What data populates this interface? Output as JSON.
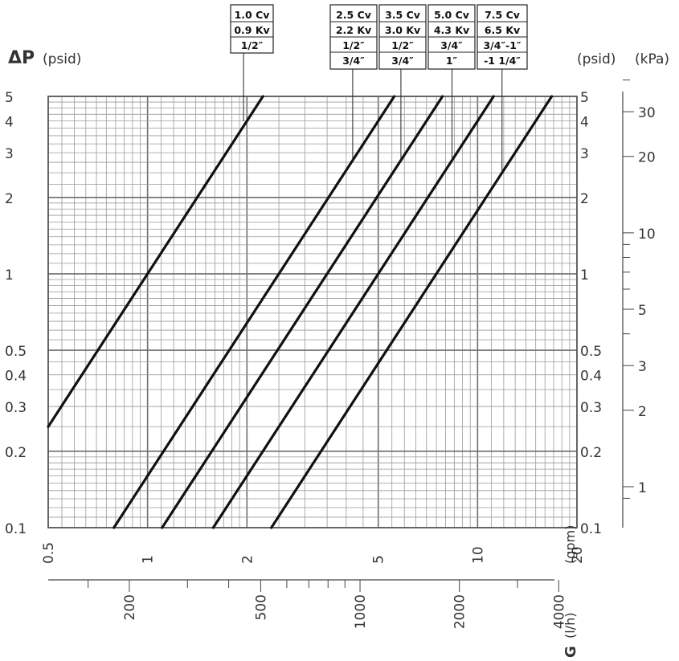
{
  "chart_data": {
    "type": "line",
    "scale": "log-log",
    "grid": true,
    "left_axis": {
      "title_symbol": "ΔP",
      "title_unit": "(psid)",
      "range": [
        0.1,
        5
      ],
      "ticks": [
        {
          "value": 5,
          "label": "5"
        },
        {
          "value": 4,
          "label": "4"
        },
        {
          "value": 3,
          "label": "3"
        },
        {
          "value": 2,
          "label": "2"
        },
        {
          "value": 1,
          "label": "1"
        },
        {
          "value": 0.5,
          "label": "0.5"
        },
        {
          "value": 0.4,
          "label": "0.4"
        },
        {
          "value": 0.3,
          "label": "0.3"
        },
        {
          "value": 0.2,
          "label": "0.2"
        },
        {
          "value": 0.1,
          "label": "0.1"
        }
      ]
    },
    "right_axis_psid": {
      "title": "(psid)",
      "ticks": [
        {
          "value": 5,
          "label": "5"
        },
        {
          "value": 4,
          "label": "4"
        },
        {
          "value": 3,
          "label": "3"
        },
        {
          "value": 2,
          "label": "2"
        },
        {
          "value": 1,
          "label": "1"
        },
        {
          "value": 0.5,
          "label": "0.5"
        },
        {
          "value": 0.4,
          "label": "0.4"
        },
        {
          "value": 0.3,
          "label": "0.3"
        },
        {
          "value": 0.2,
          "label": "0.2"
        },
        {
          "value": 0.1,
          "label": "0.1"
        }
      ]
    },
    "right_axis_kpa": {
      "title": "(kPa)",
      "ticks": [
        {
          "value": 30,
          "label": "30"
        },
        {
          "value": 20,
          "label": "20"
        },
        {
          "value": 10,
          "label": "10"
        },
        {
          "value": 5,
          "label": "5"
        },
        {
          "value": 3,
          "label": "3"
        },
        {
          "value": 2,
          "label": "2"
        },
        {
          "value": 1,
          "label": "1"
        }
      ],
      "minor_ticks": [
        40,
        9,
        8,
        7,
        6,
        4,
        0.9
      ]
    },
    "x_axis_gpm": {
      "title": "(gpm)",
      "range": [
        0.5,
        20
      ],
      "ticks": [
        {
          "value": 0.5,
          "label": "0.5"
        },
        {
          "value": 1,
          "label": "1"
        },
        {
          "value": 2,
          "label": "2"
        },
        {
          "value": 5,
          "label": "5"
        },
        {
          "value": 10,
          "label": "10"
        },
        {
          "value": 20,
          "label": "20"
        }
      ]
    },
    "x_axis_lh": {
      "title_symbol": "G",
      "title_unit": "(l/h)",
      "ticks": [
        {
          "value": 200,
          "label": "200"
        },
        {
          "value": 500,
          "label": "500"
        },
        {
          "value": 1000,
          "label": "1000"
        },
        {
          "value": 2000,
          "label": "2000"
        },
        {
          "value": 4000,
          "label": "4000"
        }
      ],
      "minor_ticks": [
        150,
        300,
        400,
        600,
        700,
        800,
        900,
        3000
      ]
    },
    "series": [
      {
        "cv": 1.0,
        "label_lines": [
          "1.0 Cv",
          "0.9 Kv",
          "1/2″"
        ]
      },
      {
        "cv": 2.5,
        "label_lines": [
          "2.5 Cv",
          "2.2 Kv",
          "1/2″",
          "3/4″"
        ]
      },
      {
        "cv": 3.5,
        "label_lines": [
          "3.5 Cv",
          "3.0 Kv",
          "1/2″",
          "3/4″"
        ]
      },
      {
        "cv": 5.0,
        "label_lines": [
          "5.0 Cv",
          "4.3 Kv",
          "3/4″",
          "1″"
        ]
      },
      {
        "cv": 7.5,
        "label_lines": [
          "7.5 Cv",
          "6.5 Kv",
          "3/4″-1″",
          "-1 1/4″"
        ]
      }
    ],
    "line_color": "#111111",
    "grid_color": "#9a9a9a",
    "major_grid_color": "#6e6e6e"
  }
}
